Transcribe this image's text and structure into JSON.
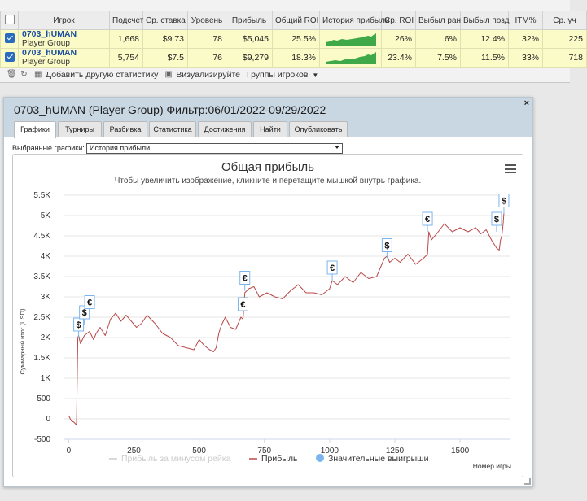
{
  "stats_table": {
    "columns": [
      "Игрок",
      "Подсчет",
      "Ср. ставка",
      "Уровень",
      "Прибыль",
      "Общий ROI",
      "История прибыли",
      "Ср. ROI",
      "Выбыл ран",
      "Выбыл позд",
      "ITM%",
      "Ср. уч"
    ],
    "rows": [
      {
        "name": "0703_hUMAN",
        "group": "Player Group",
        "count": "1,668",
        "avg_stake": "$9.73",
        "level": "78",
        "profit": "$5,045",
        "total_roi": "25.5%",
        "avg_roi": "26%",
        "early": "6%",
        "late": "12.4%",
        "itm": "32%",
        "avg_field": "225",
        "checked": true
      },
      {
        "name": "0703_hUMAN",
        "group": "Player Group",
        "count": "5,754",
        "avg_stake": "$7.5",
        "level": "76",
        "profit": "$9,279",
        "total_roi": "18.3%",
        "avg_roi": "23.4%",
        "early": "7.5%",
        "late": "11.5%",
        "itm": "33%",
        "avg_field": "718",
        "checked": true
      }
    ],
    "toolbar": {
      "add_stats": "Добавить другую статистику",
      "visualize": "Визуализируйте",
      "player_groups": "Группы игроков"
    }
  },
  "window": {
    "title": "0703_hUMAN (Player Group) Фильтр:06/01/2022-09/29/2022",
    "close": "×",
    "tabs": [
      "Графики",
      "Турниры",
      "Разбивка",
      "Статистика",
      "Достижения",
      "Найти",
      "Опубликовать"
    ],
    "active_tab": 0,
    "selector_label": "Выбранные графики:",
    "selector_value": "История прибыли"
  },
  "chart_data": {
    "type": "line",
    "title": "Общая прибыль",
    "subtitle": "Чтобы увеличить изображение, кликните и перетащите мышкой внутрь графика.",
    "xlabel": "Номер игры",
    "ylabel": "Суммарный итог (USD)",
    "xlim": [
      -20,
      1690
    ],
    "ylim": [
      -500,
      5500
    ],
    "x_ticks": [
      0,
      250,
      500,
      750,
      1000,
      1250,
      1500
    ],
    "y_ticks": [
      -500,
      0,
      500,
      1000,
      1500,
      2000,
      2500,
      3000,
      3500,
      4000,
      4500,
      5000,
      5500
    ],
    "y_tick_labels": [
      "-500",
      "0",
      "500",
      "1K",
      "1.5K",
      "2K",
      "2.5K",
      "3K",
      "3.5K",
      "4K",
      "4.5K",
      "5K",
      "5.5K"
    ],
    "series": [
      {
        "name": "Прибыль за минусом рейка",
        "color": "#cccccc",
        "visible": false
      },
      {
        "name": "Прибыль",
        "color": "#b84a4a",
        "x": [
          0,
          10,
          20,
          30,
          35,
          38,
          45,
          60,
          80,
          95,
          105,
          120,
          140,
          160,
          180,
          200,
          220,
          240,
          260,
          280,
          300,
          330,
          360,
          390,
          420,
          450,
          480,
          500,
          520,
          540,
          555,
          565,
          575,
          585,
          600,
          620,
          640,
          660,
          668,
          675,
          690,
          710,
          730,
          760,
          790,
          820,
          850,
          880,
          910,
          940,
          970,
          1000,
          1010,
          1030,
          1060,
          1090,
          1120,
          1150,
          1180,
          1210,
          1220,
          1230,
          1250,
          1270,
          1300,
          1330,
          1360,
          1375,
          1380,
          1390,
          1410,
          1440,
          1470,
          1500,
          1530,
          1560,
          1580,
          1600,
          1620,
          1640,
          1650,
          1655,
          1660,
          1665,
          1668
        ],
        "values": [
          80,
          -50,
          -80,
          -150,
          2000,
          2050,
          1850,
          2050,
          2150,
          1950,
          2100,
          2250,
          2050,
          2450,
          2600,
          2400,
          2550,
          2400,
          2250,
          2350,
          2550,
          2350,
          2100,
          2000,
          1800,
          1750,
          1700,
          1950,
          1800,
          1700,
          1650,
          1750,
          2100,
          2300,
          2500,
          2250,
          2200,
          2500,
          2450,
          3100,
          3200,
          3250,
          3000,
          3100,
          3000,
          2950,
          3150,
          3300,
          3100,
          3100,
          3050,
          3200,
          3400,
          3300,
          3500,
          3350,
          3600,
          3450,
          3500,
          3950,
          4000,
          3850,
          3950,
          3850,
          4050,
          3800,
          3950,
          4050,
          4600,
          4400,
          4550,
          4800,
          4600,
          4700,
          4600,
          4700,
          4550,
          4650,
          4400,
          4200,
          4150,
          4400,
          4500,
          4800,
          5050
        ]
      },
      {
        "name": "Значительные выигрыши",
        "color": "#7cb5ec",
        "markers": [
          {
            "x": 38,
            "y": 2000,
            "label": "$"
          },
          {
            "x": 60,
            "y": 2300,
            "label": "$"
          },
          {
            "x": 80,
            "y": 2550,
            "label": "€"
          },
          {
            "x": 668,
            "y": 2500,
            "label": "€"
          },
          {
            "x": 675,
            "y": 3150,
            "label": "€"
          },
          {
            "x": 1010,
            "y": 3400,
            "label": "€"
          },
          {
            "x": 1220,
            "y": 3950,
            "label": "$"
          },
          {
            "x": 1375,
            "y": 4600,
            "label": "€"
          },
          {
            "x": 1640,
            "y": 4600,
            "label": "$"
          },
          {
            "x": 1668,
            "y": 5050,
            "label": "$"
          }
        ]
      }
    ],
    "legend": [
      "Прибыль за минусом рейка",
      "Прибыль",
      "Значительные выигрыши"
    ],
    "legend_position": "bottom"
  }
}
